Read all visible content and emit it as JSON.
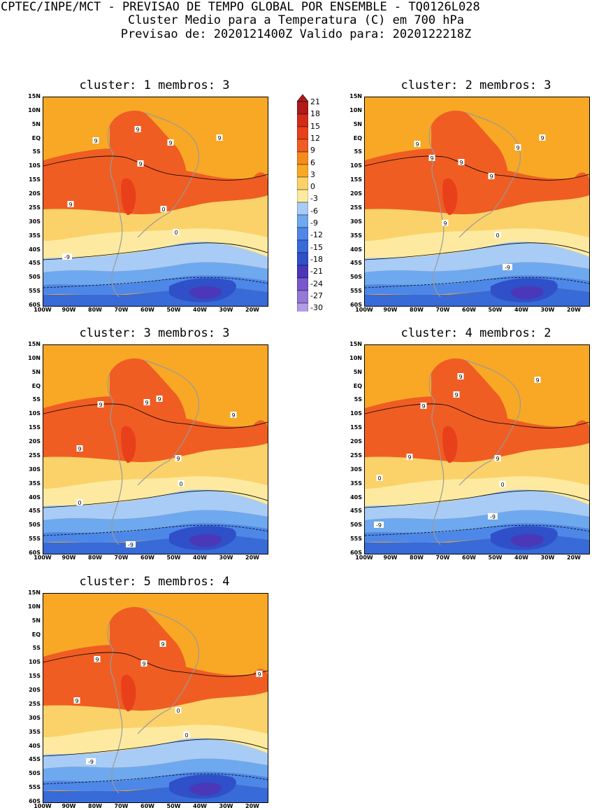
{
  "header": {
    "line1": "CPTEC/INPE/MCT - PREVISAO DE TEMPO GLOBAL POR ENSEMBLE - TQ0126L028",
    "line2": "Cluster Medio para a Temperatura (C) em 700 hPa",
    "line3": "Previsao de: 2020121400Z   Valido para: 2020122218Z"
  },
  "lat_labels": [
    "15N",
    "10N",
    "5N",
    "EQ",
    "5S",
    "10S",
    "15S",
    "20S",
    "25S",
    "30S",
    "35S",
    "40S",
    "45S",
    "50S",
    "55S",
    "60S"
  ],
  "lon_labels": [
    "100W",
    "90W",
    "80W",
    "70W",
    "60W",
    "50W",
    "40W",
    "30W",
    "20W"
  ],
  "colorbar": {
    "levels": [
      "21",
      "18",
      "15",
      "12",
      "9",
      "6",
      "3",
      "0",
      "-3",
      "-6",
      "-9",
      "-12",
      "-15",
      "-18",
      "-21",
      "-24",
      "-27",
      "-30"
    ],
    "colors": [
      "#b01a1a",
      "#d42a1a",
      "#e8401a",
      "#ef5d23",
      "#f58b1d",
      "#f8a825",
      "#fbd26a",
      "#fdeaa0",
      "#a8ccf5",
      "#6ea8ee",
      "#4d88e8",
      "#386ad8",
      "#2f50c8",
      "#4a38b8",
      "#7858cc",
      "#9678d8",
      "#b29ce4",
      "#d0c4ee"
    ]
  },
  "panels": [
    {
      "title": "cluster: 1   membros: 3",
      "contour_labels": [
        "9",
        "9",
        "9",
        "9",
        "9",
        "9",
        "0",
        "0",
        "-9"
      ]
    },
    {
      "title": "cluster: 2   membros: 3",
      "contour_labels": [
        "9",
        "9",
        "9",
        "9",
        "9",
        "9",
        "9",
        "0",
        "-9"
      ]
    },
    {
      "title": "cluster: 3   membros: 3",
      "contour_labels": [
        "9",
        "9",
        "9",
        "9",
        "9",
        "9",
        "0",
        "0",
        "-9"
      ]
    },
    {
      "title": "cluster: 4   membros: 2",
      "contour_labels": [
        "9",
        "9",
        "9",
        "9",
        "9",
        "9",
        "0",
        "0",
        "-9",
        "-9"
      ]
    },
    {
      "title": "cluster: 5   membros: 4",
      "contour_labels": [
        "9",
        "9",
        "9",
        "9",
        "9",
        "0",
        "0",
        "-9"
      ]
    }
  ]
}
